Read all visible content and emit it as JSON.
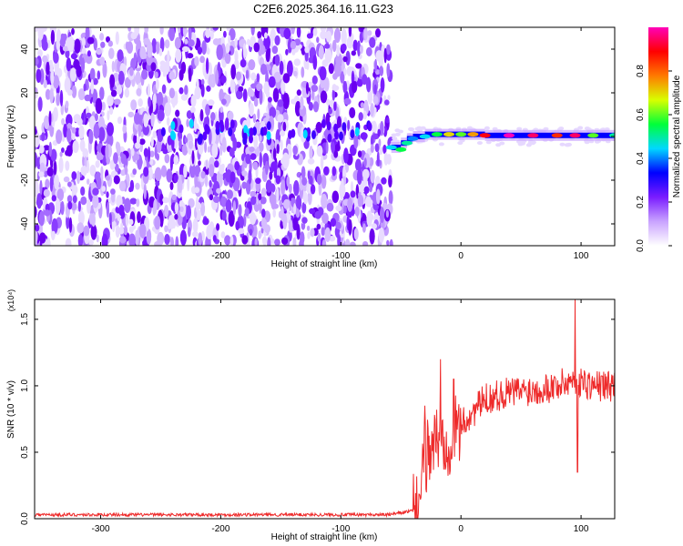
{
  "title": "C2E6.2025.364.16.11.G23",
  "chart_data": [
    {
      "type": "heatmap",
      "xlabel": "Height of straight line (km)",
      "ylabel": "Frequency (Hz)",
      "xlim": [
        -355,
        128
      ],
      "ylim": [
        -50,
        50
      ],
      "x_ticks": [
        -300,
        -200,
        -100,
        0,
        100
      ],
      "x_tick_labels": [
        "-300",
        "-200",
        "-100",
        "0",
        "100"
      ],
      "y_ticks": [
        -40,
        -20,
        0,
        20,
        40
      ],
      "y_tick_labels": [
        "-40",
        "-20",
        "0",
        "20",
        "40"
      ],
      "noise_region_x": [
        -355,
        -58
      ],
      "signal_ridge": [
        {
          "x": -58,
          "y": -5,
          "amp": 0.45
        },
        {
          "x": -50,
          "y": -6,
          "amp": 0.55
        },
        {
          "x": -45,
          "y": -3,
          "amp": 0.5
        },
        {
          "x": -40,
          "y": -1,
          "amp": 0.4
        },
        {
          "x": -30,
          "y": 0,
          "amp": 0.45
        },
        {
          "x": -20,
          "y": 1,
          "amp": 0.55
        },
        {
          "x": -10,
          "y": 1,
          "amp": 0.7
        },
        {
          "x": 0,
          "y": 1,
          "amp": 0.6
        },
        {
          "x": 10,
          "y": 1,
          "amp": 0.75
        },
        {
          "x": 20,
          "y": 0.5,
          "amp": 0.9
        },
        {
          "x": 40,
          "y": 0.5,
          "amp": 1.0
        },
        {
          "x": 60,
          "y": 0.5,
          "amp": 0.95
        },
        {
          "x": 80,
          "y": 0.5,
          "amp": 0.85
        },
        {
          "x": 95,
          "y": 0.5,
          "amp": 0.95
        },
        {
          "x": 110,
          "y": 0.5,
          "amp": 0.6
        },
        {
          "x": 128,
          "y": 0.5,
          "amp": 0.5
        }
      ],
      "grid": false
    },
    {
      "type": "colorbar",
      "label": "Normalized spectral amplitude",
      "range": [
        0,
        1
      ],
      "ticks": [
        0,
        0.2,
        0.4,
        0.6,
        0.8
      ],
      "tick_labels": [
        "0.0",
        "0.2",
        "0.4",
        "0.6",
        "0.8"
      ],
      "colors": [
        "#ffffff",
        "#c9a3ff",
        "#7a1cff",
        "#0000ff",
        "#00d8ff",
        "#00ff3a",
        "#d8ff00",
        "#ff7a00",
        "#ff0000",
        "#ff00b8"
      ]
    },
    {
      "type": "line",
      "xlabel": "Height of straight line (km)",
      "ylabel": "SNR (10 * v/v)",
      "y_multiplier": "(x10⁴)",
      "xlim": [
        -355,
        128
      ],
      "ylim": [
        0,
        1.65
      ],
      "x_ticks": [
        -300,
        -200,
        -100,
        0,
        100
      ],
      "x_tick_labels": [
        "-300",
        "-200",
        "-100",
        "0",
        "100"
      ],
      "y_ticks": [
        0,
        0.5,
        1.0,
        1.5
      ],
      "y_tick_labels": [
        "0.0",
        "0.5",
        "1.0",
        "1.5"
      ],
      "series": [
        {
          "color": "#ee2a2a",
          "envelope": [
            {
              "x": -355,
              "y": 0.03
            },
            {
              "x": -150,
              "y": 0.03
            },
            {
              "x": -60,
              "y": 0.03
            },
            {
              "x": -40,
              "y": 0.06
            },
            {
              "x": -35,
              "y": 0.12
            },
            {
              "x": -30,
              "y": 0.45
            },
            {
              "x": -25,
              "y": 0.55
            },
            {
              "x": -20,
              "y": 0.6
            },
            {
              "x": -10,
              "y": 0.6
            },
            {
              "x": 0,
              "y": 0.7
            },
            {
              "x": 10,
              "y": 0.8
            },
            {
              "x": 20,
              "y": 0.9
            },
            {
              "x": 40,
              "y": 0.95
            },
            {
              "x": 60,
              "y": 0.97
            },
            {
              "x": 80,
              "y": 1.0
            },
            {
              "x": 95,
              "y": 1.05
            },
            {
              "x": 110,
              "y": 1.0
            },
            {
              "x": 128,
              "y": 1.0
            }
          ],
          "peaks": [
            {
              "x": -30,
              "y": 0.85
            },
            {
              "x": -17,
              "y": 1.2
            },
            {
              "x": -6,
              "y": 1.05
            },
            {
              "x": 95,
              "y": 1.65
            },
            {
              "x": 97,
              "y": 0.35
            }
          ]
        }
      ],
      "grid": false
    }
  ]
}
